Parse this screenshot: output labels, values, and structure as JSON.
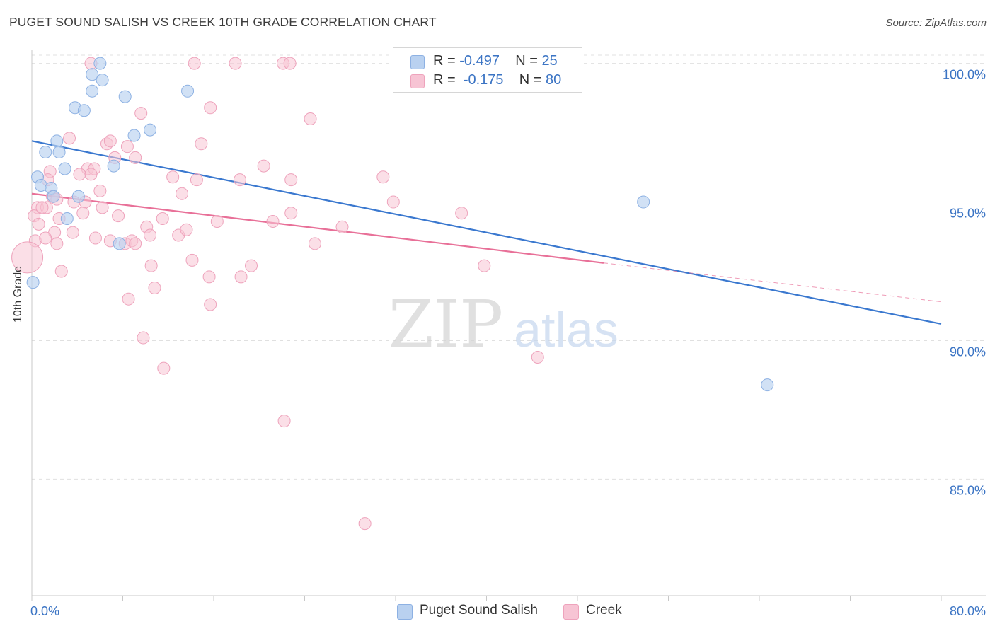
{
  "title": "PUGET SOUND SALISH VS CREEK 10TH GRADE CORRELATION CHART",
  "source": "Source: ZipAtlas.com",
  "watermark": {
    "zip": "ZIP",
    "atlas": "atlas"
  },
  "legend": {
    "rows": [
      {
        "r_label": "R =",
        "r_value": "-0.497",
        "n_label": "N =",
        "n_value": "25"
      },
      {
        "r_label": "R =",
        "r_value": "-0.175",
        "n_label": "N =",
        "n_value": "80"
      }
    ]
  },
  "bottom_legend": [
    "Puget Sound Salish",
    "Creek"
  ],
  "colors": {
    "blue_fill": "#b9d1f0",
    "blue_stroke": "#8db1e3",
    "blue_line": "#3a78cf",
    "pink_fill": "#f7c4d4",
    "pink_stroke": "#eea3bc",
    "pink_line": "#e87098",
    "tick_label": "#3b74c4",
    "grid": "#e0e0e0"
  },
  "chart_data": {
    "type": "scatter",
    "title": "PUGET SOUND SALISH VS CREEK 10TH GRADE CORRELATION CHART",
    "xlabel": "",
    "ylabel": "10th Grade",
    "xlim": [
      0,
      80
    ],
    "ylim": [
      80.8,
      100.5
    ],
    "x_tick_labels": [
      "0.0%",
      "80.0%"
    ],
    "y_ticks": [
      85,
      90,
      95,
      100
    ],
    "y_tick_labels": [
      "85.0%",
      "90.0%",
      "95.0%",
      "100.0%"
    ],
    "series": [
      {
        "name": "Puget Sound Salish",
        "r": -0.497,
        "n": 25,
        "points": [
          [
            6.0,
            100.0
          ],
          [
            5.3,
            99.6
          ],
          [
            6.2,
            99.4
          ],
          [
            5.3,
            99.0
          ],
          [
            13.7,
            99.0
          ],
          [
            8.2,
            98.8
          ],
          [
            3.8,
            98.4
          ],
          [
            4.6,
            98.3
          ],
          [
            10.4,
            97.6
          ],
          [
            9.0,
            97.4
          ],
          [
            2.2,
            97.2
          ],
          [
            1.2,
            96.8
          ],
          [
            2.4,
            96.8
          ],
          [
            7.2,
            96.3
          ],
          [
            2.9,
            96.2
          ],
          [
            0.5,
            95.9
          ],
          [
            0.8,
            95.6
          ],
          [
            1.7,
            95.5
          ],
          [
            1.9,
            95.2
          ],
          [
            4.1,
            95.2
          ],
          [
            3.1,
            94.4
          ],
          [
            7.7,
            93.5
          ],
          [
            0.1,
            92.1
          ],
          [
            53.8,
            95.0
          ],
          [
            64.7,
            88.4
          ]
        ],
        "trend": {
          "x": [
            0,
            80
          ],
          "y": [
            97.2,
            90.6
          ],
          "dashed": false
        }
      },
      {
        "name": "Creek",
        "r": -0.175,
        "n": 80,
        "points": [
          [
            5.2,
            100.0
          ],
          [
            14.3,
            100.0
          ],
          [
            17.9,
            100.0
          ],
          [
            22.1,
            100.0
          ],
          [
            22.7,
            100.0
          ],
          [
            15.7,
            98.4
          ],
          [
            24.5,
            98.0
          ],
          [
            9.6,
            98.2
          ],
          [
            3.3,
            97.3
          ],
          [
            6.6,
            97.1
          ],
          [
            6.9,
            97.2
          ],
          [
            14.9,
            97.1
          ],
          [
            8.4,
            97.0
          ],
          [
            7.3,
            96.6
          ],
          [
            9.1,
            96.6
          ],
          [
            20.4,
            96.3
          ],
          [
            4.9,
            96.2
          ],
          [
            5.5,
            96.2
          ],
          [
            1.6,
            96.1
          ],
          [
            4.2,
            96.0
          ],
          [
            5.2,
            96.0
          ],
          [
            12.4,
            95.9
          ],
          [
            30.9,
            95.9
          ],
          [
            1.4,
            95.8
          ],
          [
            14.5,
            95.8
          ],
          [
            18.3,
            95.8
          ],
          [
            22.8,
            95.8
          ],
          [
            6.0,
            95.4
          ],
          [
            13.2,
            95.3
          ],
          [
            1.8,
            95.2
          ],
          [
            2.2,
            95.1
          ],
          [
            3.7,
            95.0
          ],
          [
            4.7,
            95.0
          ],
          [
            31.8,
            95.0
          ],
          [
            0.5,
            94.8
          ],
          [
            1.3,
            94.8
          ],
          [
            6.2,
            94.8
          ],
          [
            4.5,
            94.6
          ],
          [
            7.6,
            94.5
          ],
          [
            2.4,
            94.4
          ],
          [
            11.5,
            94.4
          ],
          [
            16.3,
            94.3
          ],
          [
            21.2,
            94.3
          ],
          [
            22.8,
            94.6
          ],
          [
            37.8,
            94.6
          ],
          [
            0.2,
            94.5
          ],
          [
            0.6,
            94.2
          ],
          [
            10.1,
            94.1
          ],
          [
            27.3,
            94.1
          ],
          [
            2.0,
            93.9
          ],
          [
            3.6,
            93.9
          ],
          [
            10.4,
            93.8
          ],
          [
            12.9,
            93.8
          ],
          [
            0.3,
            93.6
          ],
          [
            1.2,
            93.7
          ],
          [
            5.6,
            93.7
          ],
          [
            6.9,
            93.6
          ],
          [
            8.2,
            93.5
          ],
          [
            8.8,
            93.6
          ],
          [
            9.1,
            93.5
          ],
          [
            2.2,
            93.5
          ],
          [
            24.9,
            93.5
          ],
          [
            -0.4,
            93.0
          ],
          [
            14.1,
            92.9
          ],
          [
            10.5,
            92.7
          ],
          [
            19.3,
            92.7
          ],
          [
            39.8,
            92.7
          ],
          [
            2.6,
            92.5
          ],
          [
            15.6,
            92.3
          ],
          [
            18.4,
            92.3
          ],
          [
            10.8,
            91.9
          ],
          [
            8.5,
            91.5
          ],
          [
            15.7,
            91.3
          ],
          [
            9.8,
            90.1
          ],
          [
            11.6,
            89.0
          ],
          [
            44.5,
            89.4
          ],
          [
            22.2,
            87.1
          ],
          [
            29.3,
            83.4
          ],
          [
            0.9,
            94.8
          ],
          [
            13.6,
            94.0
          ]
        ],
        "trend": {
          "x": [
            0,
            50.3
          ],
          "y": [
            95.3,
            92.8
          ],
          "dashed": false
        },
        "trend_extension": {
          "x": [
            50.3,
            80
          ],
          "y": [
            92.8,
            91.4
          ],
          "dashed": true
        }
      }
    ]
  }
}
